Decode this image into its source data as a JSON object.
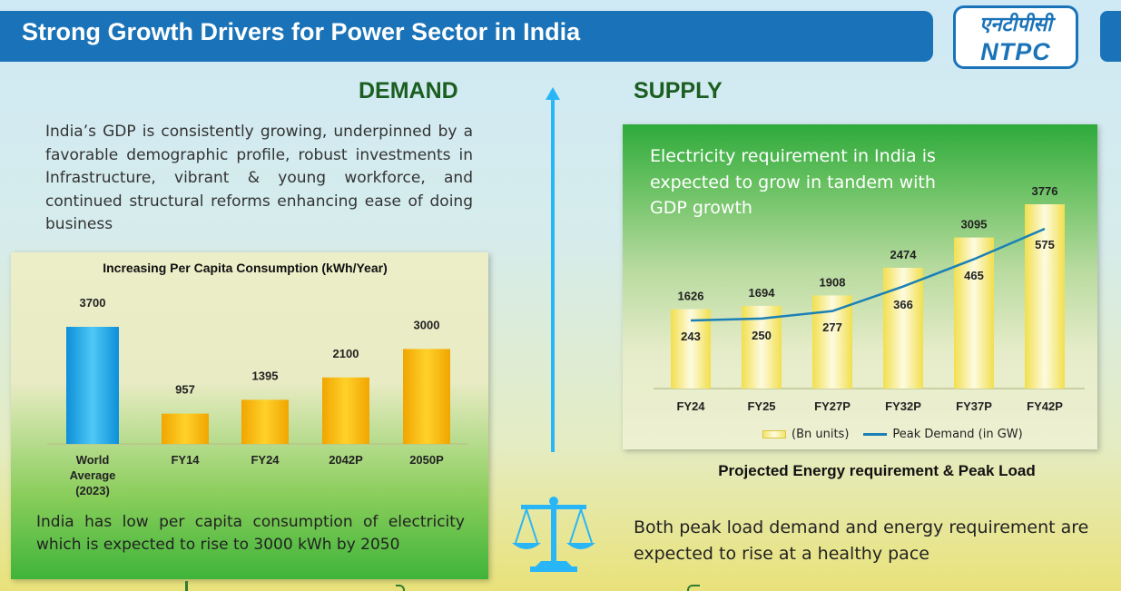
{
  "header": {
    "title": "Strong Growth Drivers for Power Sector in India",
    "logo_hindi": "एनटीपीसी",
    "logo_text": "NTPC"
  },
  "demand": {
    "title": "DEMAND",
    "text": "India’s GDP is consistently growing, underpinned by a favorable demographic profile, robust investments in Infrastructure, vibrant & young workforce, and continued structural reforms enhancing ease of doing business",
    "footer": "India has low per capita consumption of electricity which is expected to rise to 3000 kWh by 2050"
  },
  "supply": {
    "title": "SUPPLY",
    "panel_note": "Electricity requirement in India is expected to grow in tandem with GDP growth",
    "footer": "Both peak load demand and energy requirement are expected to rise at a healthy pace"
  },
  "colors": {
    "header_blue": "#1a73b8",
    "title_green": "#1b5e20",
    "world_bar": "#29b6f6",
    "gold_bar": "#f5b800",
    "pale_bar": "#f5e56a",
    "line_blue": "#1a80b6"
  },
  "chart_data": [
    {
      "type": "bar",
      "title": "Increasing Per Capita Consumption (kWh/Year)",
      "categories": [
        "World Average (2023)",
        "FY14",
        "FY24",
        "2042P",
        "2050P"
      ],
      "values": [
        3700,
        957,
        1395,
        2100,
        3000
      ],
      "xlabel": "",
      "ylabel": "",
      "ylim": [
        0,
        4000
      ],
      "grid": false
    },
    {
      "type": "bar",
      "title": "Projected Energy requirement & Peak Load",
      "categories": [
        "FY24",
        "FY25",
        "FY27P",
        "FY32P",
        "FY37P",
        "FY42P"
      ],
      "series": [
        {
          "name": "(Bn units)",
          "type": "bar",
          "values": [
            1626,
            1694,
            1908,
            2474,
            3095,
            3776
          ]
        },
        {
          "name": "Peak Demand (in GW)",
          "type": "line",
          "values": [
            243,
            250,
            277,
            366,
            465,
            575
          ]
        }
      ],
      "legend": "bottom",
      "grid": false
    }
  ]
}
